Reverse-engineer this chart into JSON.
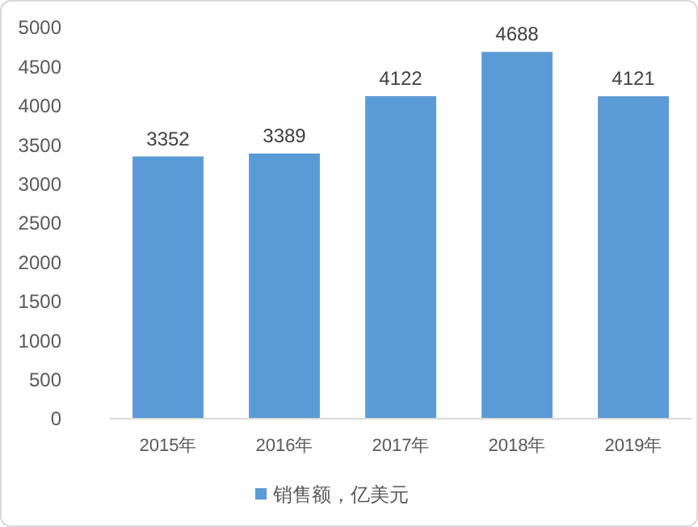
{
  "chart_data": {
    "type": "bar",
    "categories": [
      "2015年",
      "2016年",
      "2017年",
      "2018年",
      "2019年"
    ],
    "series": [
      {
        "name": "销售额，亿美元",
        "color": "#5b9bd5",
        "values": [
          3352,
          3389,
          4122,
          4688,
          4121
        ]
      }
    ],
    "ylim": [
      0,
      5000
    ],
    "yticks": [
      0,
      500,
      1000,
      1500,
      2000,
      2500,
      3000,
      3500,
      4000,
      4500,
      5000
    ],
    "grid": false,
    "data_labels": true,
    "legend": "bottom"
  }
}
